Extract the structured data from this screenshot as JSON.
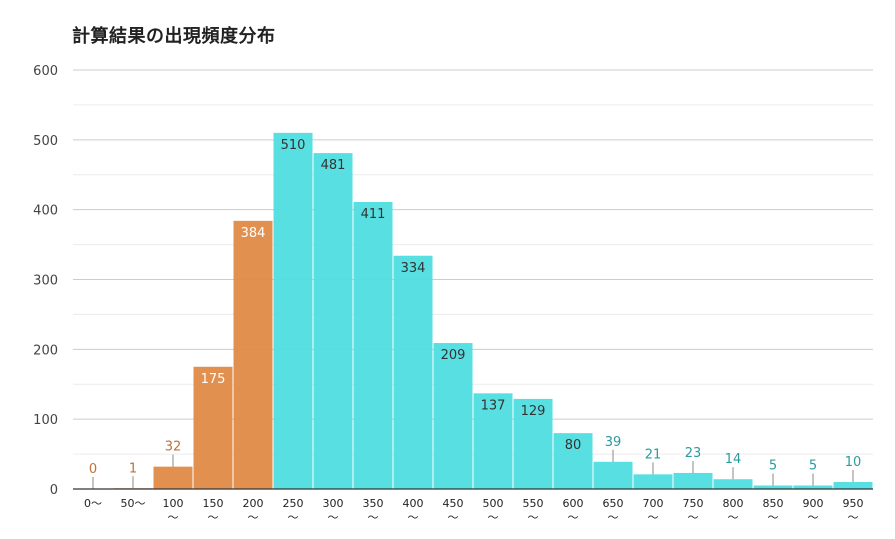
{
  "title": "計算結果の出現頻度分布",
  "colors": {
    "low": "#e08a47",
    "high": "#4fdde0",
    "low_outside_label": "#c0703a",
    "high_outside_label": "#2a9aa0",
    "inside_label_low": "#ffffff",
    "inside_label_high": "#333333"
  },
  "chart_data": {
    "type": "bar",
    "title": "計算結果の出現頻度分布",
    "xlabel": "",
    "ylabel": "",
    "ylim": [
      0,
      600
    ],
    "yticks": [
      "0",
      "100",
      "200",
      "300",
      "400",
      "500",
      "600"
    ],
    "grid": true,
    "categories": [
      "0〜",
      "50〜",
      "100〜",
      "150〜",
      "200〜",
      "250〜",
      "300〜",
      "350〜",
      "400〜",
      "450〜",
      "500〜",
      "550〜",
      "600〜",
      "650〜",
      "700〜",
      "750〜",
      "800〜",
      "850〜",
      "900〜",
      "950〜"
    ],
    "values": [
      0,
      1,
      32,
      175,
      384,
      510,
      481,
      411,
      334,
      209,
      137,
      129,
      80,
      39,
      21,
      23,
      14,
      5,
      5,
      10
    ],
    "color_groups": [
      "low",
      "low",
      "low",
      "low",
      "low",
      "high",
      "high",
      "high",
      "high",
      "high",
      "high",
      "high",
      "high",
      "high",
      "high",
      "high",
      "high",
      "high",
      "high",
      "high"
    ]
  }
}
